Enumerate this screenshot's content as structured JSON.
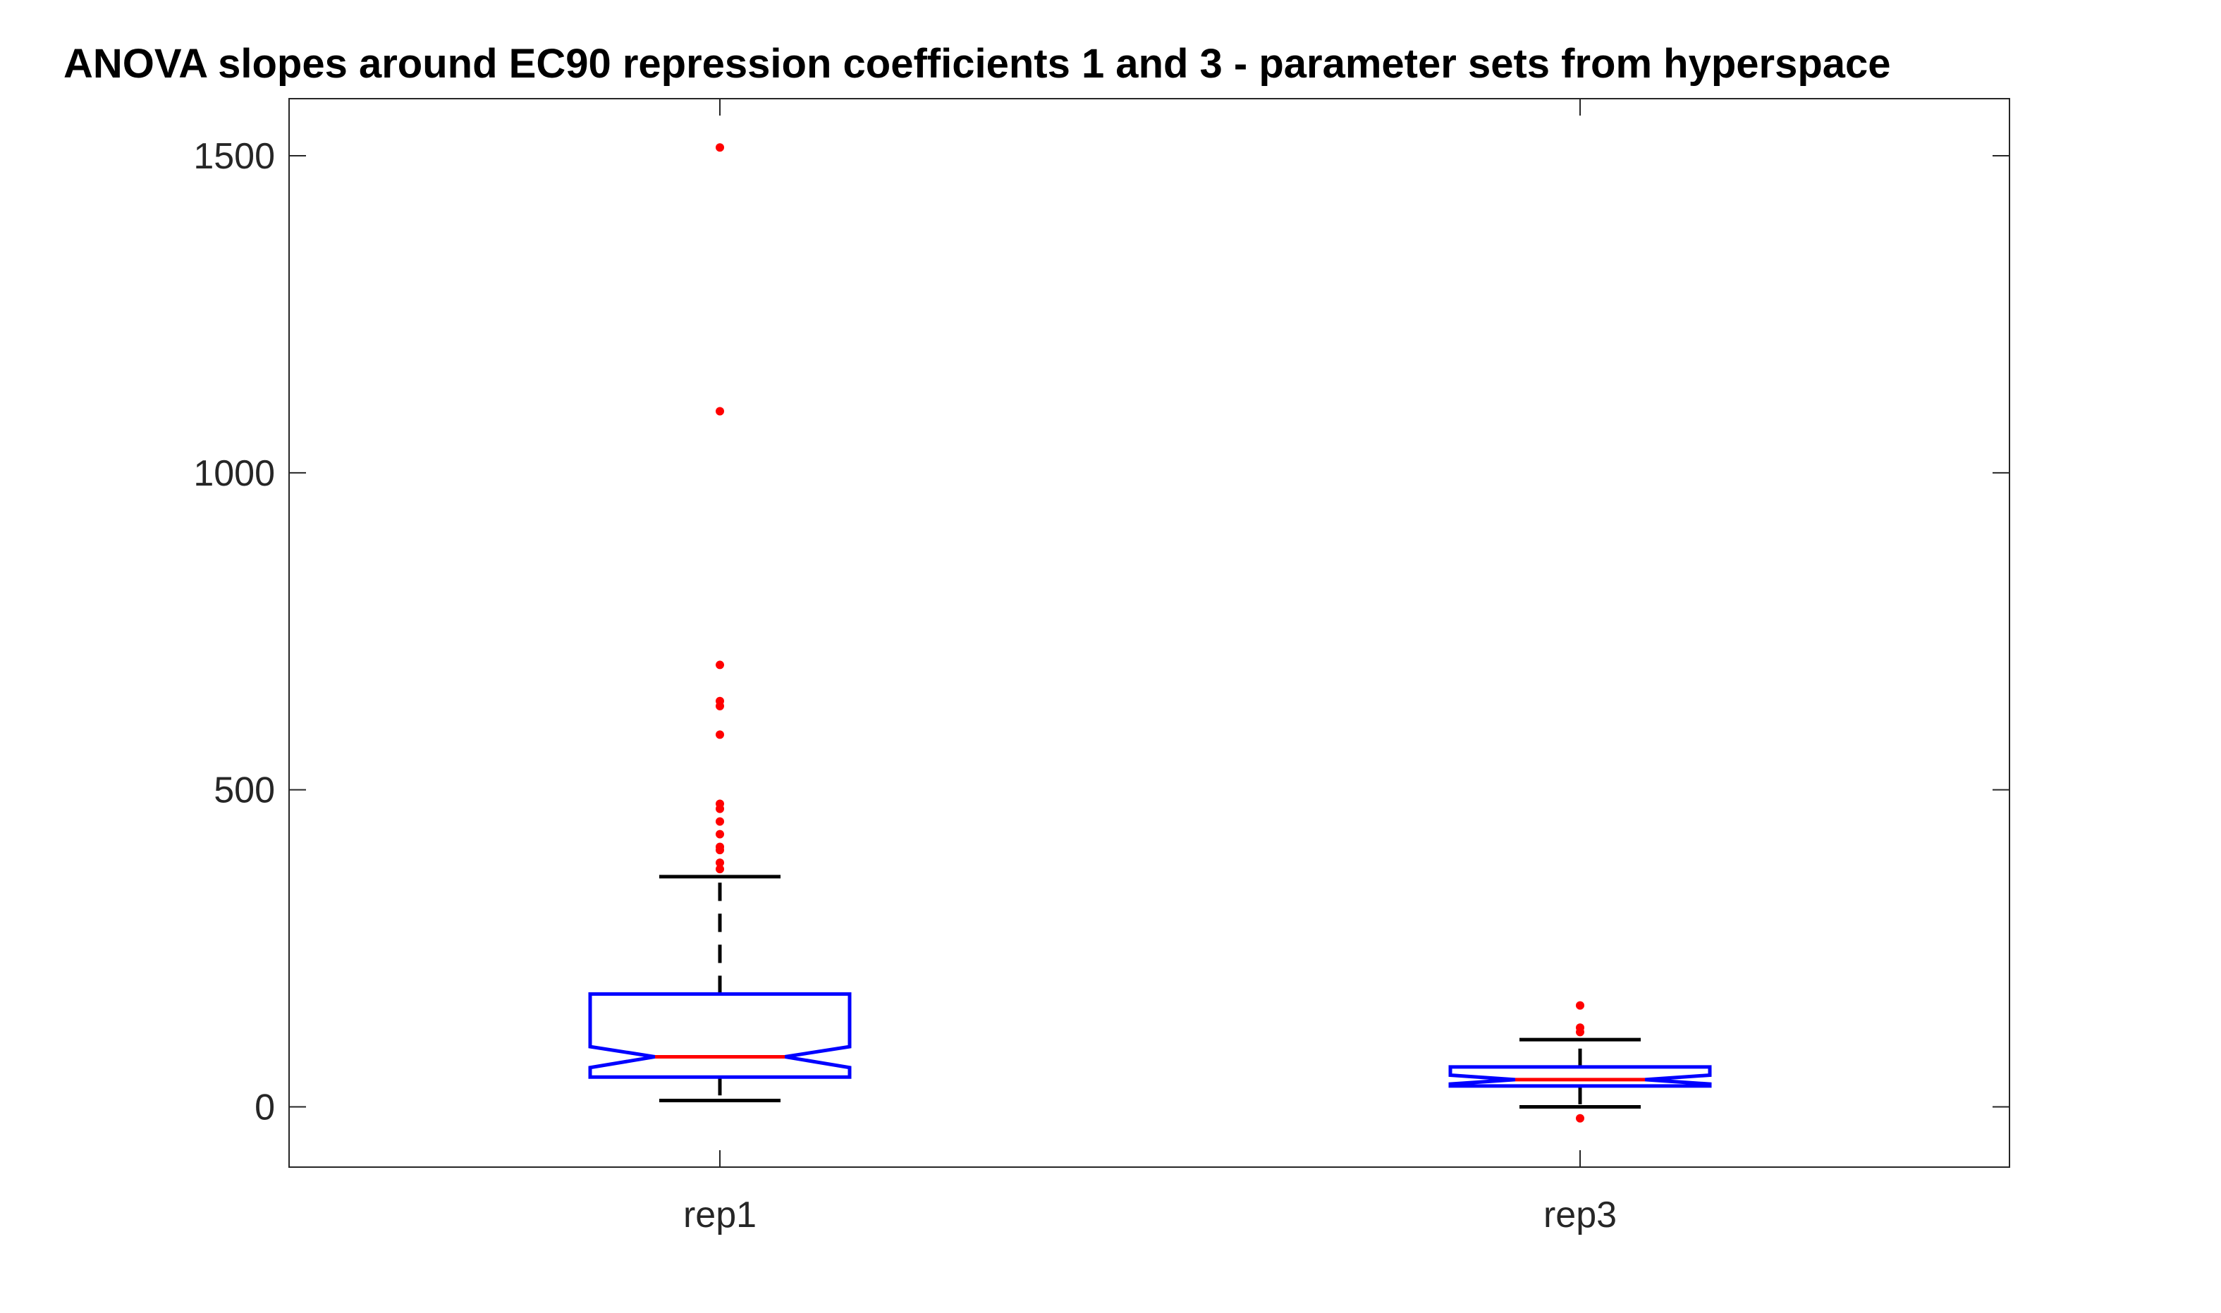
{
  "chart_data": {
    "type": "boxplot",
    "title": "ANOVA slopes around EC90 repression coefficients 1 and 3 - parameter sets from hyperspace",
    "xlabel": "",
    "ylabel": "",
    "ylim": [
      -95,
      1590
    ],
    "yticks": [
      0,
      500,
      1000,
      1500
    ],
    "ytick_labels": [
      "0",
      "500",
      "1000",
      "1500"
    ],
    "notched": true,
    "grid": false,
    "legend": "none",
    "categories": [
      "rep1",
      "rep3"
    ],
    "series": [
      {
        "whisker_low": 10,
        "q1": 47,
        "median": 79,
        "q3": 178,
        "whisker_high": 363,
        "notch_low": 62,
        "notch_high": 95,
        "outliers": [
          375,
          385,
          405,
          410,
          430,
          450,
          470,
          478,
          587,
          632,
          640,
          697,
          1097,
          1513
        ]
      },
      {
        "whisker_low": 0,
        "q1": 33,
        "median": 43,
        "q3": 63,
        "whisker_high": 106,
        "notch_low": 36,
        "notch_high": 50,
        "outliers": [
          -18,
          118,
          125,
          160
        ]
      }
    ],
    "colors": {
      "box": "#0000ff",
      "median": "#ff0000",
      "whisker": "#000000",
      "outlier": "#ff0000",
      "axes": "#262626"
    }
  }
}
